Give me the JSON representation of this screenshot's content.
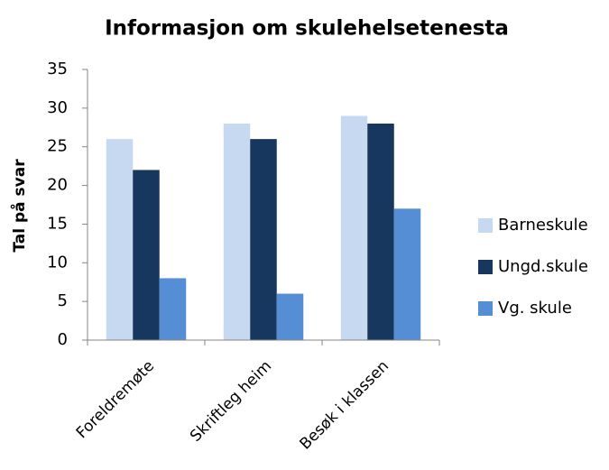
{
  "chart_data": {
    "type": "bar",
    "title": "Informasjon om skulehelsetenesta",
    "y_label": "Tal på svar",
    "categories": [
      "Foreldremøte",
      "Skriftleg heim",
      "Besøk i klassen"
    ],
    "series": [
      {
        "name": "Barneskule",
        "color": "#c6d9f1",
        "values": [
          26,
          28,
          29
        ]
      },
      {
        "name": "Ungd.skule",
        "color": "#17375e",
        "values": [
          22,
          26,
          28
        ]
      },
      {
        "name": "Vg. skule",
        "color": "#558ed5",
        "values": [
          8,
          6,
          17
        ]
      }
    ],
    "ylim": [
      0,
      35
    ],
    "yticks": [
      0,
      5,
      10,
      15,
      20,
      25,
      30,
      35
    ],
    "grid": false,
    "legend": "right"
  }
}
